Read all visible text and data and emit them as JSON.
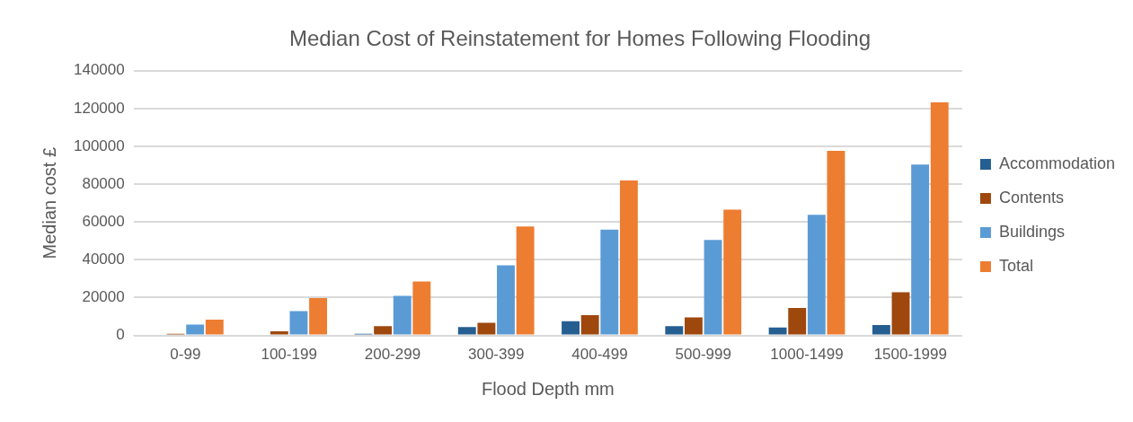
{
  "chart_data": {
    "type": "bar",
    "title": "Median Cost of Reinstatement for Homes Following Flooding",
    "xlabel": "Flood Depth mm",
    "ylabel": "Median cost £",
    "categories": [
      "0-99",
      "100-199",
      "200-299",
      "300-399",
      "400-499",
      "500-999",
      "1000-1499",
      "1500-1999"
    ],
    "series": [
      {
        "name": "Accommodation",
        "color": "#255e91",
        "values": [
          0,
          0,
          900,
          4400,
          7500,
          4900,
          4200,
          5500
        ]
      },
      {
        "name": "Contents",
        "color": "#9e480e",
        "values": [
          900,
          2200,
          4900,
          6700,
          10700,
          9600,
          14500,
          22900
        ]
      },
      {
        "name": "Buildings",
        "color": "#5b9bd5",
        "values": [
          5800,
          12900,
          20900,
          37100,
          56000,
          50500,
          63800,
          90400
        ]
      },
      {
        "name": "Total",
        "color": "#ed7d31",
        "values": [
          8400,
          19800,
          28500,
          57600,
          82000,
          66500,
          97600,
          123300
        ]
      }
    ],
    "ylim": [
      0,
      140000
    ],
    "yticks": [
      0,
      20000,
      40000,
      60000,
      80000,
      100000,
      120000,
      140000
    ],
    "grid": "y",
    "legend": "right"
  }
}
